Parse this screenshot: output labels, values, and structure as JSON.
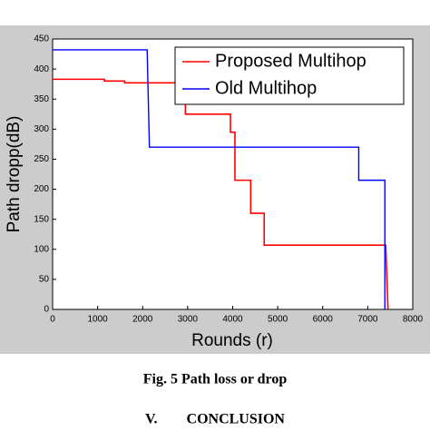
{
  "chart_data": {
    "type": "line",
    "x_label": "Rounds (r)",
    "y_label": "Path dropp(dB)",
    "xlim": [
      0,
      8000
    ],
    "xticks": [
      0,
      1000,
      2000,
      3000,
      4000,
      5000,
      6000,
      7000,
      8000
    ],
    "ylim": [
      0,
      450
    ],
    "yticks": [
      0,
      50,
      100,
      150,
      200,
      250,
      300,
      350,
      400,
      450
    ],
    "legend": "upper right",
    "series": [
      {
        "name": "Proposed Multihop",
        "color": "#ff0000",
        "x": [
          0,
          1150,
          1150,
          1600,
          1600,
          2950,
          2950,
          3950,
          3950,
          4050,
          4050,
          4400,
          4400,
          4700,
          4700,
          7400,
          7450
        ],
        "values": [
          383,
          383,
          380,
          380,
          377,
          377,
          325,
          325,
          295,
          295,
          215,
          215,
          160,
          160,
          107,
          107,
          0
        ]
      },
      {
        "name": "Old Multihop",
        "color": "#0000ff",
        "x": [
          0,
          2100,
          2150,
          6800,
          6800,
          7380,
          7380
        ],
        "values": [
          432,
          432,
          270,
          270,
          215,
          215,
          0
        ]
      }
    ]
  },
  "caption": "Fig. 5  Path loss or drop",
  "section_heading": "V.        CONCLUSION"
}
